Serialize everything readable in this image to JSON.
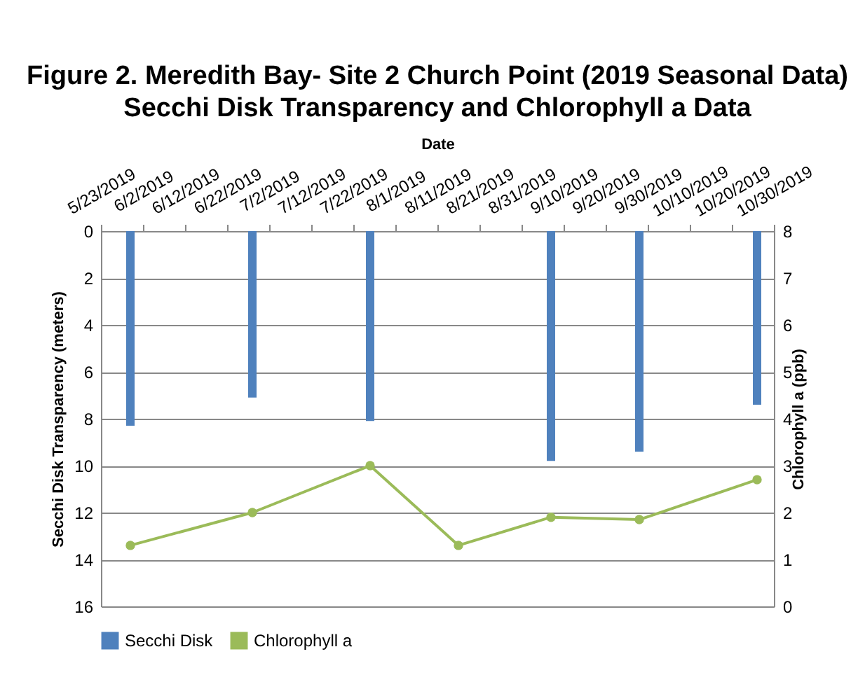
{
  "chart_data": {
    "type": "bar",
    "title": "Figure 2. Meredith Bay- Site 2 Church Point (2019 Seasonal Data)",
    "subtitle": "Secchi Disk Transparency and Chlorophyll a  Data",
    "xlabel": "Date",
    "ylabel": "Secchi Disk Transparency (meters)",
    "y2label": "Chlorophyll a (ppb)",
    "x": [
      "2019-05-30",
      "2019-06-28",
      "2019-07-26",
      "2019-08-16",
      "2019-09-07",
      "2019-09-28",
      "2019-10-26"
    ],
    "series": [
      {
        "name": "Secchi Disk",
        "color": "#4f81bd",
        "values": [
          8.3,
          7.1,
          8.1,
          null,
          9.8,
          9.4,
          7.4
        ]
      },
      {
        "name": "Chlorophyll a",
        "type": "line",
        "axis": "y2",
        "color": "#9bbb59",
        "values": [
          1.3,
          2.0,
          3.0,
          1.3,
          1.9,
          1.85,
          2.7
        ]
      }
    ],
    "xlim": [
      "2019-05-23",
      "2019-10-30"
    ],
    "xticks": [
      {
        "value": "2019-05-23",
        "label": "5/23/2019"
      },
      {
        "value": "2019-06-02",
        "label": "6/2/2019"
      },
      {
        "value": "2019-06-12",
        "label": "6/12/2019"
      },
      {
        "value": "2019-06-22",
        "label": "6/22/2019"
      },
      {
        "value": "2019-07-02",
        "label": "7/2/2019"
      },
      {
        "value": "2019-07-12",
        "label": "7/12/2019"
      },
      {
        "value": "2019-07-22",
        "label": "7/22/2019"
      },
      {
        "value": "2019-08-01",
        "label": "8/1/2019"
      },
      {
        "value": "2019-08-11",
        "label": "8/11/2019"
      },
      {
        "value": "2019-08-21",
        "label": "8/21/2019"
      },
      {
        "value": "2019-08-31",
        "label": "8/31/2019"
      },
      {
        "value": "2019-09-10",
        "label": "9/10/2019"
      },
      {
        "value": "2019-09-20",
        "label": "9/20/2019"
      },
      {
        "value": "2019-09-30",
        "label": "9/30/2019"
      },
      {
        "value": "2019-10-10",
        "label": "10/10/2019"
      },
      {
        "value": "2019-10-20",
        "label": "10/20/2019"
      },
      {
        "value": "2019-10-30",
        "label": "10/30/2019"
      }
    ],
    "ylim": [
      16,
      0
    ],
    "yticks": [
      0,
      2,
      4,
      6,
      8,
      10,
      12,
      14,
      16
    ],
    "y2lim": [
      0,
      8
    ],
    "y2ticks": [
      0,
      1,
      2,
      3,
      4,
      5,
      6,
      7,
      8
    ],
    "grid": "y",
    "legend": "bottom",
    "marker": "circle",
    "line_style": "solid"
  }
}
